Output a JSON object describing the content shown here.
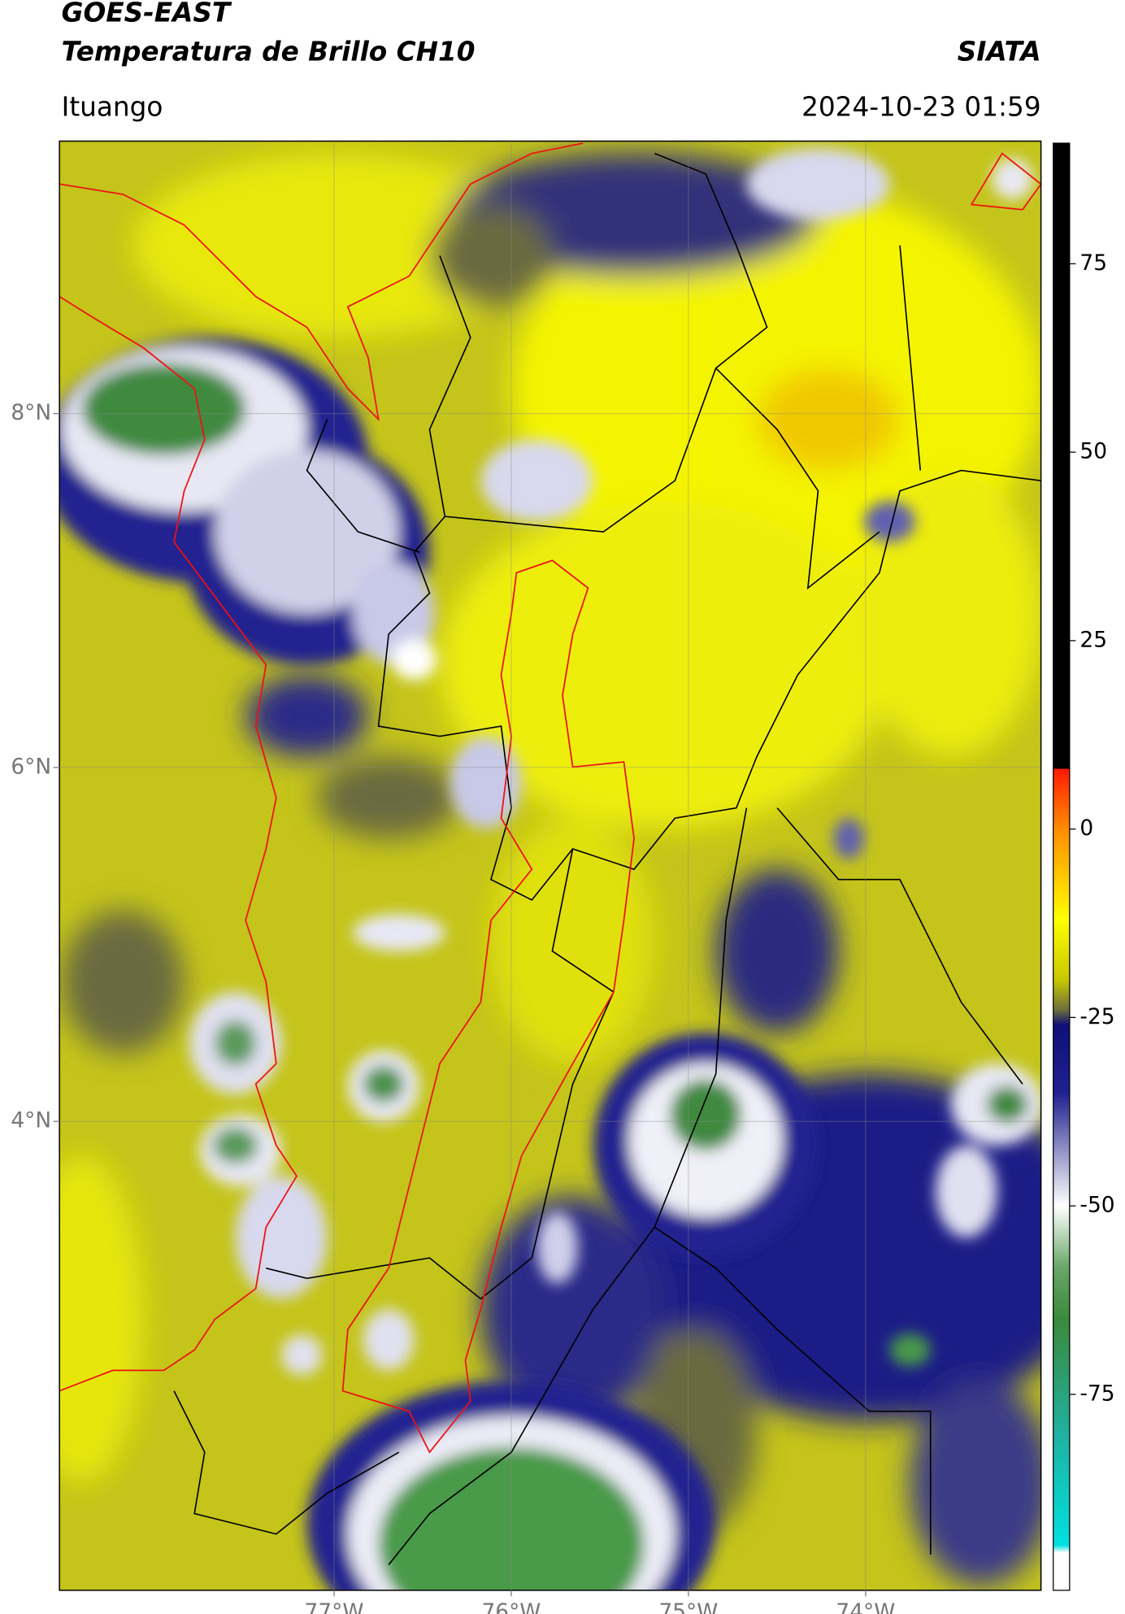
{
  "header": {
    "title": "GOES-EAST",
    "subtitle": "Temperatura de Brillo CH10",
    "agency": "SIATA",
    "place": "Ituango",
    "timestamp": "2024-10-23 01:59"
  },
  "map": {
    "xlim": [
      -78.55,
      -73.01
    ],
    "ylim": [
      1.35,
      9.54
    ],
    "xticks": [
      {
        "value": -77,
        "label": "77°W"
      },
      {
        "value": -76,
        "label": "76°W"
      },
      {
        "value": -75,
        "label": "75°W"
      },
      {
        "value": -74,
        "label": "74°W"
      }
    ],
    "yticks": [
      {
        "value": 8,
        "label": "8°N"
      },
      {
        "value": 6,
        "label": "6°N"
      },
      {
        "value": 4,
        "label": "4°N"
      }
    ],
    "grid": true
  },
  "colorbar": {
    "range": [
      -101,
      91
    ],
    "ticks": [
      75,
      50,
      25,
      0,
      -25,
      -50,
      -75
    ],
    "colormap": [
      [
        91,
        "#000000"
      ],
      [
        8,
        "#000000"
      ],
      [
        8,
        "#ff1a00"
      ],
      [
        0,
        "#ff8c00"
      ],
      [
        -12,
        "#ffff00"
      ],
      [
        -20,
        "#c8c800"
      ],
      [
        -24,
        "#6e6e3c"
      ],
      [
        -26,
        "#10107a"
      ],
      [
        -35,
        "#202090"
      ],
      [
        -50,
        "#ffffff"
      ],
      [
        -58,
        "#6aa86a"
      ],
      [
        -65,
        "#3a8a3a"
      ],
      [
        -80,
        "#20b0a0"
      ],
      [
        -95,
        "#00e0e0"
      ],
      [
        -96,
        "#ffffff"
      ],
      [
        -101,
        "#ffffff"
      ]
    ]
  }
}
